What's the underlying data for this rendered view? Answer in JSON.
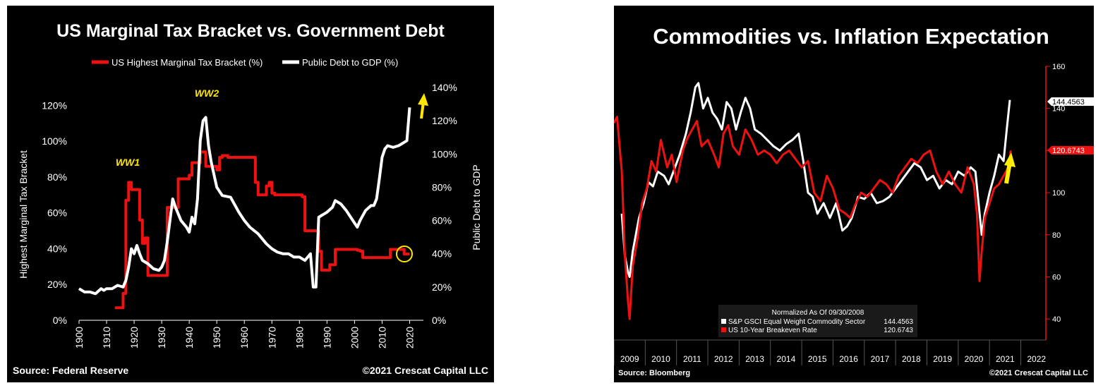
{
  "chart_data": [
    {
      "type": "line",
      "title": "US Marginal Tax Bracket vs. Government Debt",
      "xlabel": "",
      "ylabel_left": "Highest Marginal Tax Bracket",
      "ylabel_right": "Public Debt to GDP",
      "xlim": [
        1900,
        2025
      ],
      "ylim_left": [
        0,
        130
      ],
      "ylim_right": [
        0,
        140
      ],
      "x_ticks": [
        "1900",
        "1910",
        "1920",
        "1930",
        "1940",
        "1950",
        "1960",
        "1970",
        "1980",
        "1990",
        "2000",
        "2010",
        "2020"
      ],
      "y_ticks_left": [
        "0%",
        "20%",
        "40%",
        "60%",
        "80%",
        "100%",
        "120%"
      ],
      "y_ticks_right": [
        "0%",
        "20%",
        "40%",
        "60%",
        "80%",
        "100%",
        "120%",
        "140%"
      ],
      "legend_position": "top",
      "annotations": [
        "WW1",
        "WW2"
      ],
      "source": "Source: Federal Reserve",
      "copyright": "©2021 Crescat Capital LLC",
      "colors": {
        "tax": "#ee1111",
        "debt": "#ffffff",
        "annotation": "#ffe600"
      },
      "series": [
        {
          "name": "US Highest Marginal Tax Bracket (%)",
          "axis": "left",
          "x": [
            1913,
            1915,
            1916,
            1917,
            1918,
            1919,
            1920,
            1921,
            1922,
            1923,
            1924,
            1925,
            1931,
            1932,
            1935,
            1936,
            1940,
            1941,
            1944,
            1945,
            1946,
            1950,
            1951,
            1952,
            1953,
            1954,
            1963,
            1964,
            1965,
            1966,
            1967,
            1968,
            1969,
            1970,
            1971,
            1980,
            1981,
            1982,
            1986,
            1987,
            1988,
            1991,
            1992,
            1993,
            2001,
            2002,
            2003,
            2012,
            2013,
            2017,
            2018,
            2020
          ],
          "y": [
            7,
            7,
            15,
            67,
            77,
            73,
            73,
            73,
            56,
            43,
            46,
            25,
            25,
            63,
            63,
            79,
            81,
            88,
            94,
            94,
            86,
            84,
            91,
            92,
            92,
            91,
            91,
            77,
            70,
            70,
            70,
            75,
            77,
            71,
            70,
            70,
            69,
            50,
            50,
            38.5,
            28,
            31,
            31,
            39.6,
            39.1,
            38.6,
            35,
            35,
            39.6,
            39.6,
            37,
            37
          ]
        },
        {
          "name": "Public Debt to GDP (%)",
          "axis": "right",
          "x": [
            1900,
            1902,
            1904,
            1906,
            1908,
            1909,
            1910,
            1912,
            1914,
            1916,
            1917,
            1918,
            1919,
            1920,
            1921,
            1922,
            1923,
            1925,
            1927,
            1929,
            1930,
            1931,
            1932,
            1933,
            1934,
            1935,
            1937,
            1939,
            1940,
            1941,
            1942,
            1943,
            1944,
            1945,
            1946,
            1947,
            1948,
            1950,
            1952,
            1955,
            1958,
            1960,
            1962,
            1965,
            1968,
            1970,
            1972,
            1974,
            1976,
            1978,
            1980,
            1981,
            1982,
            1983,
            1984,
            1985,
            1986,
            1987,
            1988,
            1990,
            1992,
            1993,
            1995,
            1997,
            1999,
            2001,
            2002,
            2004,
            2006,
            2007,
            2008,
            2009,
            2010,
            2011,
            2012,
            2014,
            2016,
            2018,
            2019,
            2020
          ],
          "y": [
            19,
            17,
            17,
            16,
            19,
            18,
            19,
            19,
            21,
            20,
            24,
            32,
            43,
            40,
            45,
            40,
            36,
            34,
            31,
            30,
            32,
            36,
            47,
            60,
            73,
            68,
            60,
            56,
            53,
            62,
            58,
            73,
            108,
            120,
            122,
            105,
            95,
            80,
            75,
            74,
            65,
            60,
            56,
            52,
            46,
            43,
            41,
            40,
            40,
            38,
            38,
            37,
            36,
            38,
            40,
            20,
            20,
            62,
            63,
            65,
            68,
            72,
            70,
            66,
            61,
            56,
            60,
            66,
            69,
            69,
            73,
            85,
            98,
            103,
            105,
            104,
            105,
            107,
            108,
            128
          ]
        }
      ]
    },
    {
      "type": "line",
      "title": "Commodities vs. Inflation Expectation",
      "xlabel": "",
      "ylabel": "",
      "xlim": [
        2008.5,
        2022.3
      ],
      "ylim": [
        30,
        162
      ],
      "x_ticks": [
        "2009",
        "2010",
        "2011",
        "2012",
        "2013",
        "2014",
        "2015",
        "2016",
        "2017",
        "2018",
        "2019",
        "2020",
        "2021",
        "2022"
      ],
      "y_ticks": [
        "40",
        "60",
        "80",
        "100",
        "120",
        "140",
        "160"
      ],
      "legend_title": "Normalized As Of 09/30/2008",
      "legend_position": "bottom-center",
      "source": "Source: Bloomberg",
      "copyright": "©2021 Crescat Capital LLC",
      "last_values": {
        "commodity": "144.4563",
        "breakeven": "120.6743"
      },
      "colors": {
        "commodity": "#ffffff",
        "breakeven": "#ee1111",
        "arrow": "#ffee00"
      },
      "series": [
        {
          "name": "S&P GSCI Equal Weight Commodity Sector",
          "legend_value": "144.4563",
          "x": [
            2008.75,
            2008.85,
            2008.95,
            2009.0,
            2009.1,
            2009.2,
            2009.3,
            2009.45,
            2009.6,
            2009.75,
            2009.9,
            2010.1,
            2010.25,
            2010.4,
            2010.6,
            2010.8,
            2010.95,
            2011.1,
            2011.2,
            2011.35,
            2011.5,
            2011.65,
            2011.8,
            2011.95,
            2012.1,
            2012.25,
            2012.4,
            2012.55,
            2012.7,
            2012.85,
            2013.0,
            2013.2,
            2013.4,
            2013.6,
            2013.8,
            2014.0,
            2014.2,
            2014.4,
            2014.55,
            2014.7,
            2014.85,
            2015.0,
            2015.2,
            2015.4,
            2015.6,
            2015.8,
            2015.95,
            2016.1,
            2016.3,
            2016.5,
            2016.7,
            2016.9,
            2017.1,
            2017.3,
            2017.5,
            2017.7,
            2017.9,
            2018.1,
            2018.3,
            2018.5,
            2018.7,
            2018.9,
            2019.1,
            2019.3,
            2019.5,
            2019.7,
            2019.9,
            2020.05,
            2020.15,
            2020.25,
            2020.35,
            2020.5,
            2020.65,
            2020.8,
            2020.95,
            2021.05,
            2021.15
          ],
          "y": [
            90,
            70,
            62,
            60,
            72,
            80,
            88,
            95,
            105,
            103,
            110,
            108,
            104,
            110,
            118,
            128,
            138,
            150,
            152,
            140,
            145,
            138,
            135,
            130,
            143,
            140,
            130,
            138,
            145,
            140,
            130,
            128,
            125,
            122,
            120,
            123,
            125,
            128,
            115,
            100,
            98,
            90,
            95,
            88,
            95,
            82,
            84,
            88,
            98,
            97,
            100,
            95,
            96,
            98,
            102,
            106,
            110,
            114,
            112,
            106,
            108,
            102,
            106,
            104,
            110,
            108,
            112,
            110,
            95,
            80,
            90,
            100,
            108,
            118,
            115,
            130,
            144
          ]
        },
        {
          "name": "US 10-Year Breakeven Rate",
          "legend_value": "120.6743",
          "x": [
            2008.5,
            2008.6,
            2008.75,
            2008.85,
            2008.95,
            2009.0,
            2009.1,
            2009.25,
            2009.4,
            2009.55,
            2009.7,
            2009.85,
            2010.0,
            2010.2,
            2010.35,
            2010.5,
            2010.7,
            2010.85,
            2011.0,
            2011.15,
            2011.3,
            2011.5,
            2011.7,
            2011.85,
            2012.0,
            2012.15,
            2012.3,
            2012.5,
            2012.7,
            2012.9,
            2013.1,
            2013.3,
            2013.5,
            2013.7,
            2013.9,
            2014.1,
            2014.3,
            2014.5,
            2014.7,
            2014.9,
            2015.1,
            2015.3,
            2015.5,
            2015.7,
            2015.9,
            2016.05,
            2016.2,
            2016.4,
            2016.6,
            2016.8,
            2017.0,
            2017.2,
            2017.4,
            2017.6,
            2017.8,
            2018.0,
            2018.2,
            2018.4,
            2018.6,
            2018.8,
            2019.0,
            2019.2,
            2019.4,
            2019.6,
            2019.8,
            2020.0,
            2020.1,
            2020.18,
            2020.25,
            2020.35,
            2020.5,
            2020.65,
            2020.8,
            2020.95,
            2021.1,
            2021.18
          ],
          "y": [
            133,
            136,
            110,
            70,
            48,
            40,
            65,
            78,
            95,
            102,
            115,
            110,
            125,
            112,
            118,
            105,
            120,
            126,
            130,
            134,
            122,
            125,
            118,
            112,
            128,
            132,
            122,
            118,
            130,
            125,
            118,
            120,
            118,
            114,
            118,
            120,
            116,
            112,
            115,
            100,
            96,
            108,
            102,
            92,
            90,
            88,
            94,
            100,
            98,
            102,
            106,
            104,
            100,
            108,
            112,
            116,
            114,
            118,
            120,
            110,
            104,
            110,
            104,
            100,
            112,
            104,
            90,
            58,
            72,
            88,
            95,
            102,
            104,
            108,
            112,
            120
          ]
        }
      ]
    }
  ]
}
